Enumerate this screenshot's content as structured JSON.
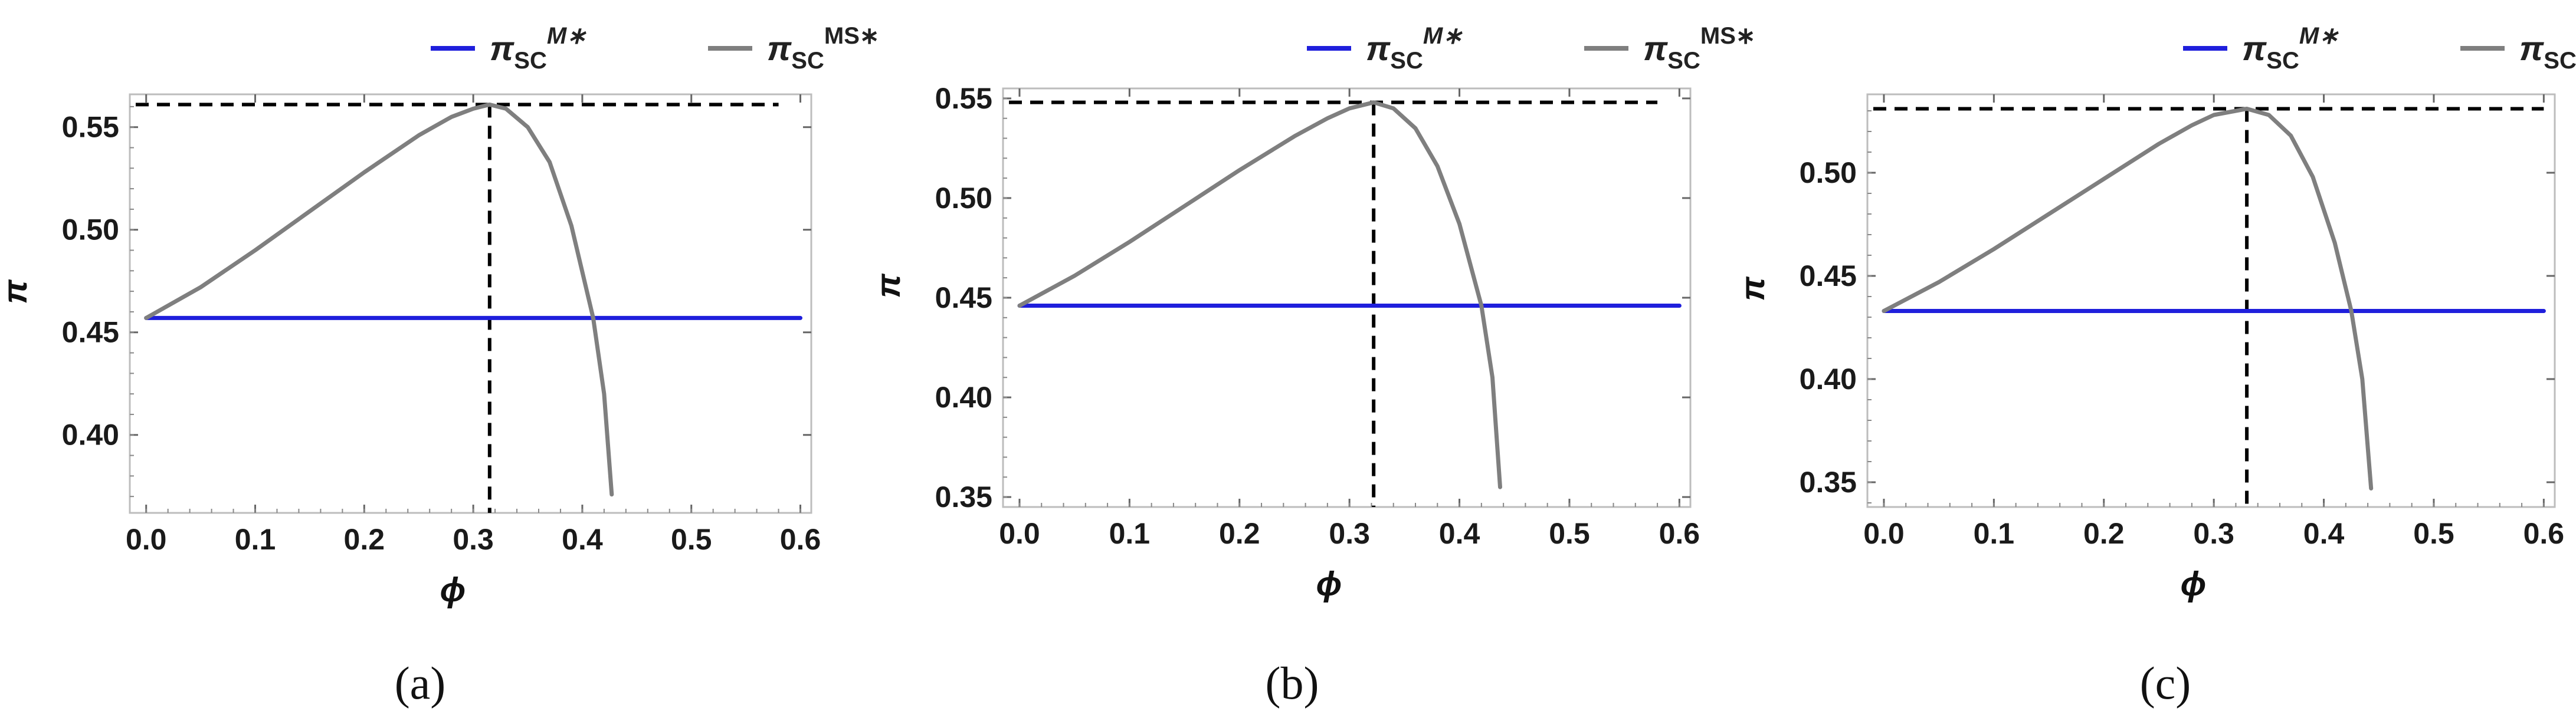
{
  "figure": {
    "colors": {
      "series_m": "#1f1fdc",
      "series_ms": "#7f7f7f",
      "reference": "#000000",
      "frame": "#bdbdbd"
    },
    "legend": {
      "entries": [
        {
          "symbol": "π",
          "sub": "SC",
          "sup": "M∗",
          "sup_italic": true,
          "color": "#1f1fdc"
        },
        {
          "symbol": "π",
          "sub": "SC",
          "sup": "MS∗",
          "sup_italic": false,
          "color": "#7f7f7f"
        }
      ]
    }
  },
  "chart_data": [
    {
      "panel": "(a)",
      "type": "line",
      "xlabel": "ϕ",
      "ylabel": "π",
      "xlim": [
        -0.015,
        0.61
      ],
      "ylim": [
        0.362,
        0.566
      ],
      "xticks": [
        "0.0",
        "0.1",
        "0.2",
        "0.3",
        "0.4",
        "0.5",
        "0.6"
      ],
      "yticks": [
        "0.40",
        "0.45",
        "0.50",
        "0.55"
      ],
      "series": [
        {
          "key": "m",
          "x": [
            0.0,
            0.6
          ],
          "y": [
            0.457,
            0.457
          ]
        },
        {
          "key": "ms",
          "x": [
            0.0,
            0.05,
            0.1,
            0.15,
            0.2,
            0.25,
            0.28,
            0.3,
            0.315,
            0.33,
            0.35,
            0.37,
            0.39,
            0.41,
            0.42,
            0.427
          ],
          "y": [
            0.457,
            0.472,
            0.49,
            0.509,
            0.528,
            0.546,
            0.555,
            0.559,
            0.561,
            0.559,
            0.55,
            0.533,
            0.502,
            0.457,
            0.42,
            0.371
          ]
        }
      ],
      "reference": {
        "x": 0.315,
        "y": 0.561,
        "hline_xmax": 0.58
      }
    },
    {
      "panel": "(b)",
      "type": "line",
      "xlabel": "ϕ",
      "ylabel": "π",
      "xlim": [
        -0.015,
        0.61
      ],
      "ylim": [
        0.345,
        0.555
      ],
      "xticks": [
        "0.0",
        "0.1",
        "0.2",
        "0.3",
        "0.4",
        "0.5",
        "0.6"
      ],
      "yticks": [
        "0.35",
        "0.40",
        "0.45",
        "0.50",
        "0.55"
      ],
      "series": [
        {
          "key": "m",
          "x": [
            0.0,
            0.6
          ],
          "y": [
            0.446,
            0.446
          ]
        },
        {
          "key": "ms",
          "x": [
            0.0,
            0.05,
            0.1,
            0.15,
            0.2,
            0.25,
            0.28,
            0.3,
            0.322,
            0.34,
            0.36,
            0.38,
            0.4,
            0.42,
            0.43,
            0.437
          ],
          "y": [
            0.446,
            0.461,
            0.478,
            0.496,
            0.514,
            0.531,
            0.54,
            0.545,
            0.548,
            0.545,
            0.535,
            0.516,
            0.487,
            0.446,
            0.41,
            0.355
          ]
        }
      ],
      "reference": {
        "x": 0.322,
        "y": 0.548,
        "hline_xmax": 0.58
      }
    },
    {
      "panel": "(c)",
      "type": "line",
      "xlabel": "ϕ",
      "ylabel": "π",
      "xlim": [
        -0.015,
        0.61
      ],
      "ylim": [
        0.338,
        0.538
      ],
      "xticks": [
        "0.0",
        "0.1",
        "0.2",
        "0.3",
        "0.4",
        "0.5",
        "0.6"
      ],
      "yticks": [
        "0.35",
        "0.40",
        "0.45",
        "0.50"
      ],
      "series": [
        {
          "key": "m",
          "x": [
            0.0,
            0.6
          ],
          "y": [
            0.433,
            0.433
          ]
        },
        {
          "key": "ms",
          "x": [
            0.0,
            0.05,
            0.1,
            0.15,
            0.2,
            0.25,
            0.28,
            0.3,
            0.33,
            0.35,
            0.37,
            0.39,
            0.41,
            0.425,
            0.435,
            0.443
          ],
          "y": [
            0.433,
            0.447,
            0.463,
            0.48,
            0.497,
            0.514,
            0.523,
            0.528,
            0.531,
            0.528,
            0.518,
            0.498,
            0.466,
            0.433,
            0.4,
            0.347
          ]
        }
      ],
      "reference": {
        "x": 0.33,
        "y": 0.531,
        "hline_xmax": 0.6
      }
    }
  ]
}
